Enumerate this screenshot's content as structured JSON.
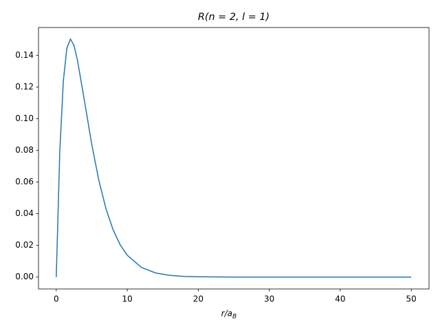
{
  "chart_data": {
    "type": "line",
    "title": "R(n = 2, l = 1)",
    "xlabel": "r/a",
    "xlabel_subscript": "B",
    "x": [
      0,
      0.5,
      1,
      1.5,
      2,
      2.5,
      3,
      4,
      5,
      6,
      7,
      8,
      9,
      10,
      12,
      14,
      16,
      18,
      20,
      25,
      30,
      40,
      50
    ],
    "series": [
      {
        "color": "#1f77b4",
        "values": [
          0,
          0.0795,
          0.1238,
          0.1446,
          0.1502,
          0.1462,
          0.1366,
          0.1105,
          0.0838,
          0.061,
          0.0432,
          0.0299,
          0.0204,
          0.0138,
          0.0061,
          0.0026,
          0.0011,
          0.00045,
          0.00019,
          0,
          0,
          0,
          0
        ]
      }
    ],
    "xlim": [
      -2.5,
      52.5
    ],
    "xticks": [
      0,
      10,
      20,
      30,
      40,
      50
    ],
    "ylim": [
      -0.0075,
      0.1575
    ],
    "yticks": [
      {
        "value": 0,
        "label": "0.00"
      },
      {
        "value": 0.02,
        "label": "0.02"
      },
      {
        "value": 0.04,
        "label": "0.04"
      },
      {
        "value": 0.06,
        "label": "0.06"
      },
      {
        "value": 0.08,
        "label": "0.08"
      },
      {
        "value": 0.1,
        "label": "0.10"
      },
      {
        "value": 0.12,
        "label": "0.12"
      },
      {
        "value": 0.14,
        "label": "0.14"
      }
    ],
    "grid": false
  }
}
